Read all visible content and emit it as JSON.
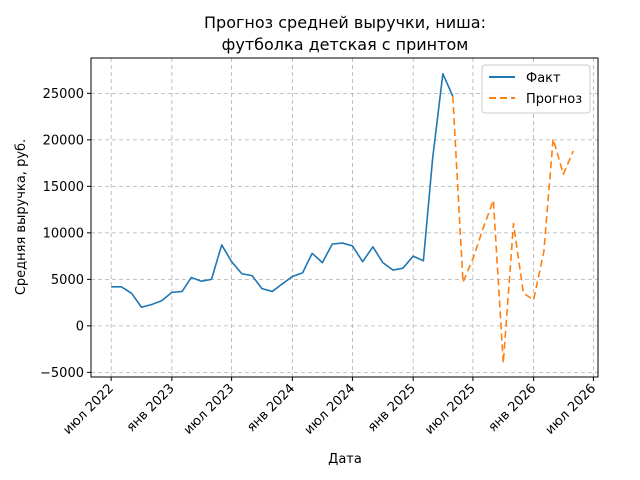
{
  "chart_data": {
    "type": "line",
    "title_lines": [
      "Прогноз средней выручки, ниша:",
      "футболка детская с принтом"
    ],
    "xlabel": "Дата",
    "ylabel": "Средняя выручка, руб.",
    "xlim": [
      "2022-05-01",
      "2026-07-15"
    ],
    "ylim": [
      -5500,
      28800
    ],
    "grid": true,
    "legend_position": "top-right",
    "x_ticks": [
      {
        "date": "2022-07-01",
        "label": "июл 2022"
      },
      {
        "date": "2023-01-01",
        "label": "янв 2023"
      },
      {
        "date": "2023-07-01",
        "label": "июл 2023"
      },
      {
        "date": "2024-01-01",
        "label": "янв 2024"
      },
      {
        "date": "2024-07-01",
        "label": "июл 2024"
      },
      {
        "date": "2025-01-01",
        "label": "янв 2025"
      },
      {
        "date": "2025-07-01",
        "label": "июл 2025"
      },
      {
        "date": "2026-01-01",
        "label": "янв 2026"
      },
      {
        "date": "2026-07-01",
        "label": "июл 2026"
      }
    ],
    "y_ticks": [
      {
        "value": -5000,
        "label": "−5000"
      },
      {
        "value": 0,
        "label": "0"
      },
      {
        "value": 5000,
        "label": "5000"
      },
      {
        "value": 10000,
        "label": "10000"
      },
      {
        "value": 15000,
        "label": "15000"
      },
      {
        "value": 20000,
        "label": "20000"
      },
      {
        "value": 25000,
        "label": "25000"
      }
    ],
    "series": [
      {
        "name": "Факт",
        "color": "#1f77b4",
        "style": "solid",
        "points": [
          {
            "x": "2022-07-01",
            "y": 4200
          },
          {
            "x": "2022-08-01",
            "y": 4200
          },
          {
            "x": "2022-09-01",
            "y": 3500
          },
          {
            "x": "2022-10-01",
            "y": 2000
          },
          {
            "x": "2022-11-01",
            "y": 2300
          },
          {
            "x": "2022-12-01",
            "y": 2700
          },
          {
            "x": "2023-01-01",
            "y": 3600
          },
          {
            "x": "2023-02-01",
            "y": 3700
          },
          {
            "x": "2023-03-01",
            "y": 5200
          },
          {
            "x": "2023-04-01",
            "y": 4800
          },
          {
            "x": "2023-05-01",
            "y": 5000
          },
          {
            "x": "2023-06-01",
            "y": 8700
          },
          {
            "x": "2023-07-01",
            "y": 6900
          },
          {
            "x": "2023-08-01",
            "y": 5600
          },
          {
            "x": "2023-09-01",
            "y": 5400
          },
          {
            "x": "2023-10-01",
            "y": 4000
          },
          {
            "x": "2023-11-01",
            "y": 3700
          },
          {
            "x": "2023-12-01",
            "y": 4500
          },
          {
            "x": "2024-01-01",
            "y": 5300
          },
          {
            "x": "2024-02-01",
            "y": 5700
          },
          {
            "x": "2024-03-01",
            "y": 7800
          },
          {
            "x": "2024-04-01",
            "y": 6800
          },
          {
            "x": "2024-05-01",
            "y": 8800
          },
          {
            "x": "2024-06-01",
            "y": 8900
          },
          {
            "x": "2024-07-01",
            "y": 8600
          },
          {
            "x": "2024-08-01",
            "y": 6900
          },
          {
            "x": "2024-09-01",
            "y": 8500
          },
          {
            "x": "2024-10-01",
            "y": 6800
          },
          {
            "x": "2024-11-01",
            "y": 6000
          },
          {
            "x": "2024-12-01",
            "y": 6200
          },
          {
            "x": "2025-01-01",
            "y": 7500
          },
          {
            "x": "2025-02-01",
            "y": 7000
          },
          {
            "x": "2025-03-01",
            "y": 18000
          },
          {
            "x": "2025-04-01",
            "y": 27100
          },
          {
            "x": "2025-05-01",
            "y": 24700
          }
        ]
      },
      {
        "name": "Прогноз",
        "color": "#ff7f0e",
        "style": "dashed",
        "points": [
          {
            "x": "2025-05-01",
            "y": 24700
          },
          {
            "x": "2025-06-01",
            "y": 4700
          },
          {
            "x": "2025-07-01",
            "y": 7200
          },
          {
            "x": "2025-08-01",
            "y": 10500
          },
          {
            "x": "2025-09-01",
            "y": 13500
          },
          {
            "x": "2025-10-01",
            "y": -4000
          },
          {
            "x": "2025-11-01",
            "y": 11000
          },
          {
            "x": "2025-12-01",
            "y": 3500
          },
          {
            "x": "2026-01-01",
            "y": 2800
          },
          {
            "x": "2026-02-01",
            "y": 8000
          },
          {
            "x": "2026-03-01",
            "y": 20100
          },
          {
            "x": "2026-04-01",
            "y": 16300
          },
          {
            "x": "2026-05-01",
            "y": 18800
          }
        ]
      }
    ]
  }
}
